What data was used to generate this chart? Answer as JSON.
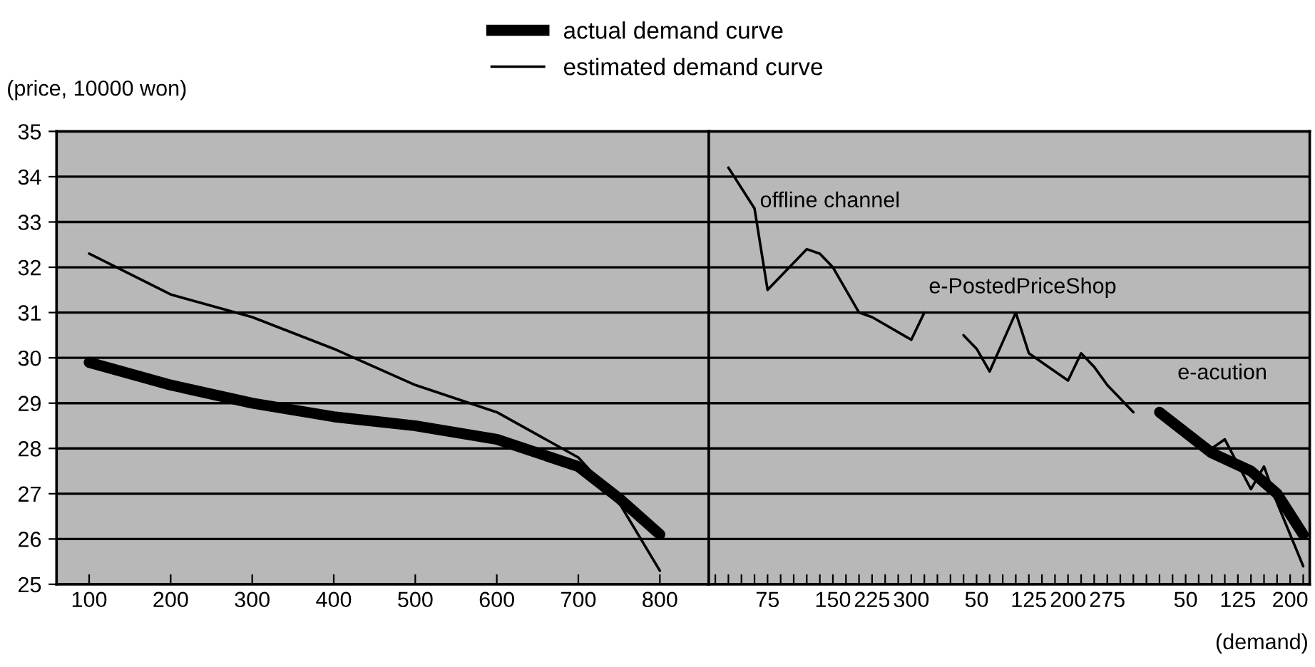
{
  "chart_data": [
    {
      "type": "line",
      "ylabel": "(price, 10000 won)",
      "legend": "top",
      "grid": "y",
      "xlim": [
        60,
        860
      ],
      "xticks": [
        100,
        200,
        300,
        400,
        500,
        600,
        700,
        800
      ],
      "ylim": [
        25,
        35
      ],
      "yticks": [
        25,
        26,
        27,
        28,
        29,
        30,
        31,
        32,
        33,
        34,
        35
      ],
      "series": [
        {
          "name": "actual demand curve",
          "color": "#000000",
          "x": [
            100,
            200,
            300,
            400,
            500,
            600,
            700,
            750,
            800
          ],
          "values": [
            29.9,
            29.4,
            29.0,
            28.7,
            28.5,
            28.2,
            27.6,
            26.9,
            26.1
          ]
        },
        {
          "name": "estimated demand curve",
          "color": "#000000",
          "x": [
            100,
            200,
            300,
            400,
            500,
            600,
            700,
            750,
            800
          ],
          "values": [
            32.3,
            31.4,
            30.9,
            30.2,
            29.4,
            28.8,
            27.8,
            26.8,
            25.3
          ]
        }
      ]
    },
    {
      "type": "line",
      "xlabel": "(demand)",
      "grid": "y",
      "tick_labels": "x",
      "ylim": [
        25,
        35
      ],
      "yticks": [
        25,
        26,
        27,
        28,
        29,
        30,
        31,
        32,
        33,
        34,
        35
      ],
      "categories": [
        null,
        null,
        null,
        null,
        "75",
        null,
        null,
        null,
        null,
        "150",
        null,
        null,
        "225",
        null,
        null,
        "300",
        null,
        null,
        null,
        null,
        "50",
        null,
        null,
        null,
        "125",
        null,
        null,
        "200",
        null,
        null,
        "275",
        null,
        null,
        null,
        null,
        null,
        "50",
        null,
        null,
        null,
        "125",
        null,
        null,
        null,
        "200",
        null
      ],
      "annotations": [
        "offline channel",
        "e-PostedPriceShop",
        "e-acution"
      ],
      "series": [
        {
          "color": "#000000",
          "values": [
            null,
            34.2,
            null,
            33.3,
            31.5,
            null,
            null,
            32.4,
            32.3,
            32.0,
            null,
            31.0,
            30.9,
            null,
            null,
            30.4,
            31.0,
            null,
            null,
            null,
            null,
            null,
            null,
            null,
            null,
            null,
            null,
            null,
            null,
            null,
            null,
            null,
            null,
            null,
            null,
            null,
            null,
            null,
            null,
            null,
            null,
            null,
            null,
            null,
            null,
            null
          ]
        },
        {
          "color": "#000000",
          "values": [
            null,
            null,
            null,
            null,
            null,
            null,
            null,
            null,
            null,
            null,
            null,
            null,
            null,
            null,
            null,
            null,
            null,
            null,
            null,
            30.5,
            30.2,
            29.7,
            null,
            31.0,
            30.1,
            null,
            null,
            29.5,
            30.1,
            29.8,
            29.4,
            null,
            28.8,
            null,
            null,
            null,
            null,
            null,
            null,
            null,
            null,
            null,
            null,
            null,
            null,
            null
          ]
        },
        {
          "color": "#000000",
          "values": [
            null,
            null,
            null,
            null,
            null,
            null,
            null,
            null,
            null,
            null,
            null,
            null,
            null,
            null,
            null,
            null,
            null,
            null,
            null,
            null,
            null,
            null,
            null,
            null,
            null,
            null,
            null,
            null,
            null,
            null,
            null,
            null,
            null,
            null,
            28.8,
            null,
            null,
            28.2,
            28.0,
            28.2,
            null,
            27.1,
            27.6,
            26.8,
            null,
            25.4
          ]
        },
        {
          "color": "#000000",
          "values": [
            null,
            null,
            null,
            null,
            null,
            null,
            null,
            null,
            null,
            null,
            null,
            null,
            null,
            null,
            null,
            null,
            null,
            null,
            null,
            null,
            null,
            null,
            null,
            null,
            null,
            null,
            null,
            null,
            null,
            null,
            null,
            null,
            null,
            null,
            28.8,
            null,
            null,
            null,
            27.9,
            null,
            null,
            27.5,
            null,
            27.0,
            null,
            26.1
          ]
        }
      ]
    }
  ]
}
